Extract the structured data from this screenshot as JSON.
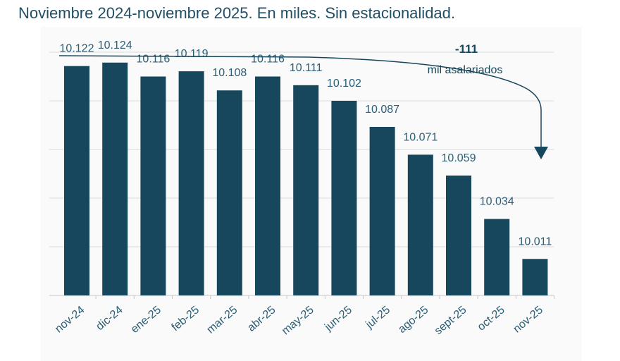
{
  "subtitle": "Noviembre 2024-noviembre 2025. En miles. Sin estacionalidad.",
  "chart_data": {
    "type": "bar",
    "categories": [
      "nov-24",
      "dic-24",
      "ene-25",
      "feb-25",
      "mar-25",
      "abr-25",
      "may-25",
      "jun-25",
      "jul-25",
      "ago-25",
      "sept-25",
      "oct-25",
      "nov-25"
    ],
    "values": [
      10122,
      10124,
      10116,
      10119,
      10108,
      10116,
      10111,
      10102,
      10087,
      10071,
      10059,
      10034,
      10011
    ],
    "value_labels": [
      "10.122",
      "10.124",
      "10.116",
      "10.119",
      "10.108",
      "10.116",
      "10.111",
      "10.102",
      "10.087",
      "10.071",
      "10.059",
      "10.034",
      "10.011"
    ],
    "ylim": [
      9990,
      10130
    ],
    "grid": true,
    "annotation": {
      "value": "-111",
      "text": "mil asalariados"
    },
    "colors": {
      "bar": "#17475c",
      "text": "#2b5d75",
      "grid": "#d9d9d9"
    }
  }
}
